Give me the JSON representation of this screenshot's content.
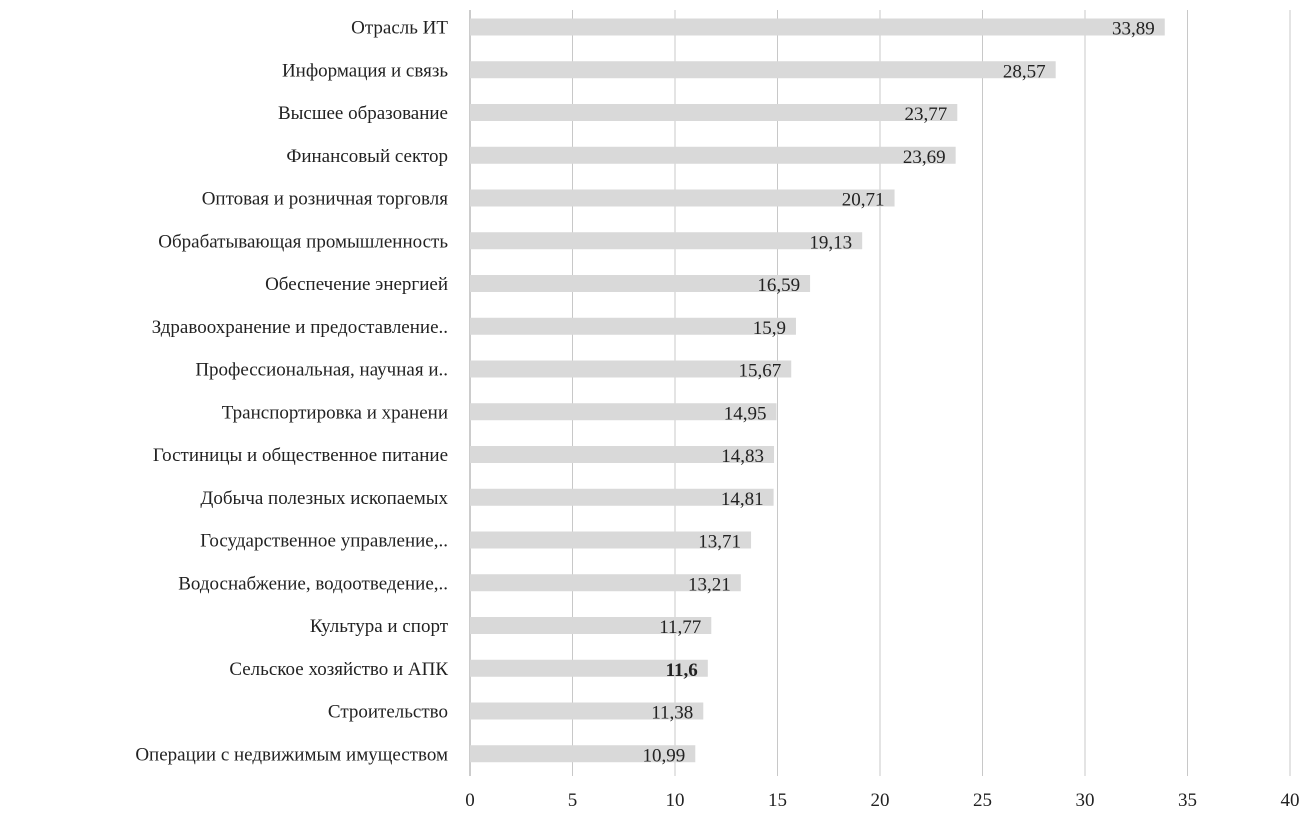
{
  "chart_data": {
    "type": "bar",
    "orientation": "horizontal",
    "categories": [
      "Отрасль ИТ",
      "Информация и связь",
      "Высшее образование",
      "Финансовый сектор",
      "Оптовая и розничная торговля",
      "Обрабатывающая промышленность",
      "Обеспечение энергией",
      "Здравоохранение и предоставление..",
      "Профессиональная, научная и..",
      "Транспортировка и хранени",
      "Гостиницы  и общественное питание",
      "Добыча полезных ископаемых",
      "Государственное управление,..",
      "Водоснабжение, водоотведение,..",
      "Культура и спорт",
      "Сельское хозяйство и АПК",
      "Строительство",
      "Операции с недвижимым имуществом"
    ],
    "values": [
      33.89,
      28.57,
      23.77,
      23.69,
      20.71,
      19.13,
      16.59,
      15.9,
      15.67,
      14.95,
      14.83,
      14.81,
      13.71,
      13.21,
      11.77,
      11.6,
      11.38,
      10.99
    ],
    "data_labels": [
      "33,89",
      "28,57",
      "23,77",
      "23,69",
      "20,71",
      "19,13",
      "16,59",
      "15,9",
      "15,67",
      "14,95",
      "14,83",
      "14,81",
      "13,71",
      "13,21",
      "11,77",
      "11,6",
      "11,38",
      "10,99"
    ],
    "bold_label_index": 15,
    "xlim": [
      0,
      40
    ],
    "xticks": [
      0,
      5,
      10,
      15,
      20,
      25,
      30,
      35,
      40
    ],
    "grid": "vertical",
    "bar_color": "#d9d9d9",
    "title": "",
    "xlabel": "",
    "ylabel": ""
  }
}
